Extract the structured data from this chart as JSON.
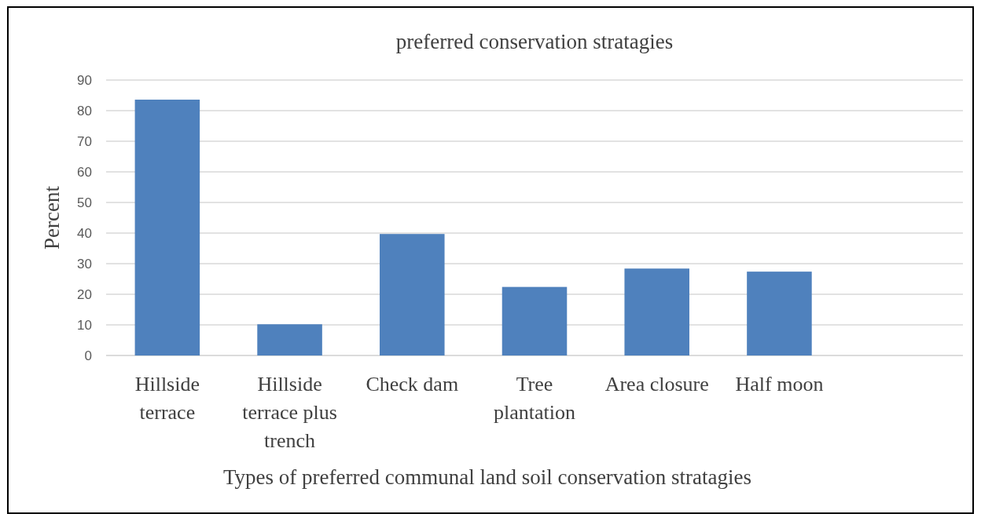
{
  "chart_data": {
    "type": "bar",
    "title": "preferred conservation stratagies",
    "xlabel": "Types of preferred communal land soil conservation stratagies",
    "ylabel": "Percent",
    "categories": [
      "Hillside terrace",
      "Hillside terrace plus trench",
      "Check dam",
      "Tree plantation",
      "Area closure",
      "Half moon",
      null
    ],
    "values": [
      83.6,
      10.2,
      39.7,
      22.4,
      28.4,
      27.4,
      null
    ],
    "color": "#4f81bd",
    "ylim": [
      0,
      90
    ],
    "yticks": [
      0,
      10,
      20,
      30,
      40,
      50,
      60,
      70,
      80,
      90
    ],
    "grid": "y"
  }
}
